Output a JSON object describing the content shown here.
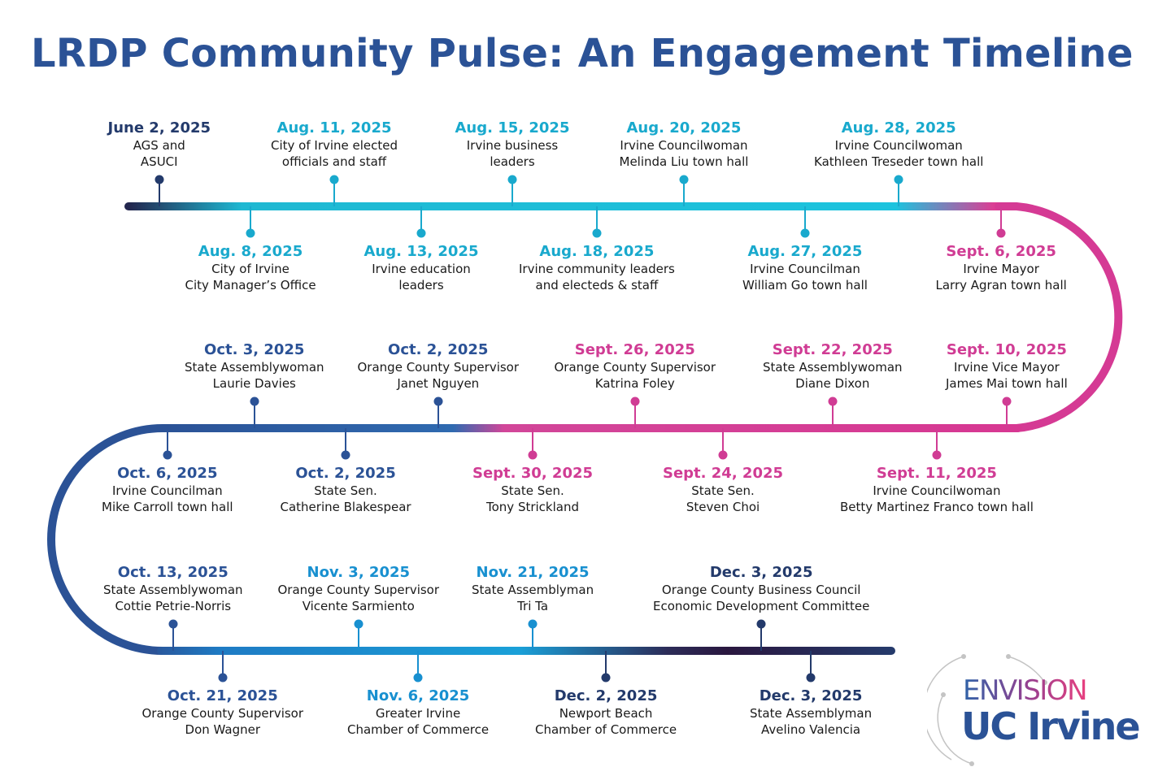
{
  "title": "LRDP Community Pulse: An Engagement Timeline",
  "colors": {
    "navy": "#233a6b",
    "cyan": "#19a9cd",
    "blue": "#1890d0",
    "magenta": "#d03c94",
    "royal": "#2b5296"
  },
  "events": [
    {
      "date": "June 2, 2025",
      "lines": [
        "AGS and",
        "ASUCI"
      ],
      "color": "navy"
    },
    {
      "date": "Aug. 8, 2025",
      "lines": [
        "City of Irvine",
        "City Manager’s Office"
      ],
      "color": "cyan"
    },
    {
      "date": "Aug. 11, 2025",
      "lines": [
        "City of Irvine elected",
        "officials and staff"
      ],
      "color": "cyan"
    },
    {
      "date": "Aug. 13, 2025",
      "lines": [
        "Irvine education",
        "leaders"
      ],
      "color": "cyan"
    },
    {
      "date": "Aug. 15, 2025",
      "lines": [
        "Irvine business",
        "leaders"
      ],
      "color": "cyan"
    },
    {
      "date": "Aug. 18, 2025",
      "lines": [
        "Irvine community leaders",
        "and electeds & staff"
      ],
      "color": "cyan"
    },
    {
      "date": "Aug. 20, 2025",
      "lines": [
        "Irvine Councilwoman",
        "Melinda Liu town hall"
      ],
      "color": "cyan"
    },
    {
      "date": "Aug. 27, 2025",
      "lines": [
        "Irvine Councilman",
        "William Go town hall"
      ],
      "color": "cyan"
    },
    {
      "date": "Aug. 28, 2025",
      "lines": [
        "Irvine Councilwoman",
        "Kathleen Treseder town hall"
      ],
      "color": "cyan"
    },
    {
      "date": "Sept. 6, 2025",
      "lines": [
        "Irvine Mayor",
        "Larry Agran town hall"
      ],
      "color": "magenta"
    },
    {
      "date": "Sept. 10, 2025",
      "lines": [
        "Irvine Vice Mayor",
        "James Mai town hall"
      ],
      "color": "magenta"
    },
    {
      "date": "Sept. 11, 2025",
      "lines": [
        "Irvine Councilwoman",
        "Betty Martinez Franco town hall"
      ],
      "color": "magenta"
    },
    {
      "date": "Sept. 22, 2025",
      "lines": [
        "State Assemblywoman",
        "Diane Dixon"
      ],
      "color": "magenta"
    },
    {
      "date": "Sept. 24, 2025",
      "lines": [
        "State Sen.",
        "Steven Choi"
      ],
      "color": "magenta"
    },
    {
      "date": "Sept. 26, 2025",
      "lines": [
        "Orange County  Supervisor",
        "Katrina Foley"
      ],
      "color": "magenta"
    },
    {
      "date": "Sept. 30, 2025",
      "lines": [
        "State Sen.",
        "Tony Strickland"
      ],
      "color": "magenta"
    },
    {
      "date": "Oct. 2, 2025",
      "lines": [
        "Orange County Supervisor",
        "Janet Nguyen"
      ],
      "color": "royal"
    },
    {
      "date": "Oct. 2, 2025",
      "lines": [
        "State Sen.",
        "Catherine Blakespear"
      ],
      "color": "royal"
    },
    {
      "date": "Oct. 3, 2025",
      "lines": [
        "State Assemblywoman",
        "Laurie Davies"
      ],
      "color": "royal"
    },
    {
      "date": "Oct. 6, 2025",
      "lines": [
        "Irvine Councilman",
        "Mike Carroll town hall"
      ],
      "color": "royal"
    },
    {
      "date": "Oct. 13, 2025",
      "lines": [
        "State Assemblywoman",
        "Cottie Petrie-Norris"
      ],
      "color": "royal"
    },
    {
      "date": "Oct. 21, 2025",
      "lines": [
        "Orange County Supervisor",
        "Don Wagner"
      ],
      "color": "royal"
    },
    {
      "date": "Nov. 3, 2025",
      "lines": [
        "Orange County Supervisor",
        "Vicente Sarmiento"
      ],
      "color": "blue"
    },
    {
      "date": "Nov. 6, 2025",
      "lines": [
        "Greater Irvine",
        "Chamber of Commerce"
      ],
      "color": "blue"
    },
    {
      "date": "Nov. 21, 2025",
      "lines": [
        "State Assemblyman",
        "Tri Ta"
      ],
      "color": "blue"
    },
    {
      "date": "Dec. 2, 2025",
      "lines": [
        "Newport Beach",
        "Chamber of Commerce"
      ],
      "color": "navy"
    },
    {
      "date": "Dec. 3, 2025",
      "lines": [
        "Orange County Business Council",
        "Economic Development Committee"
      ],
      "color": "navy"
    },
    {
      "date": "Dec. 3, 2025",
      "lines": [
        "State Assemblyman",
        "Avelino Valencia"
      ],
      "color": "navy"
    }
  ],
  "logo": {
    "top": "ENVISION",
    "bottom": "UC Irvine"
  }
}
